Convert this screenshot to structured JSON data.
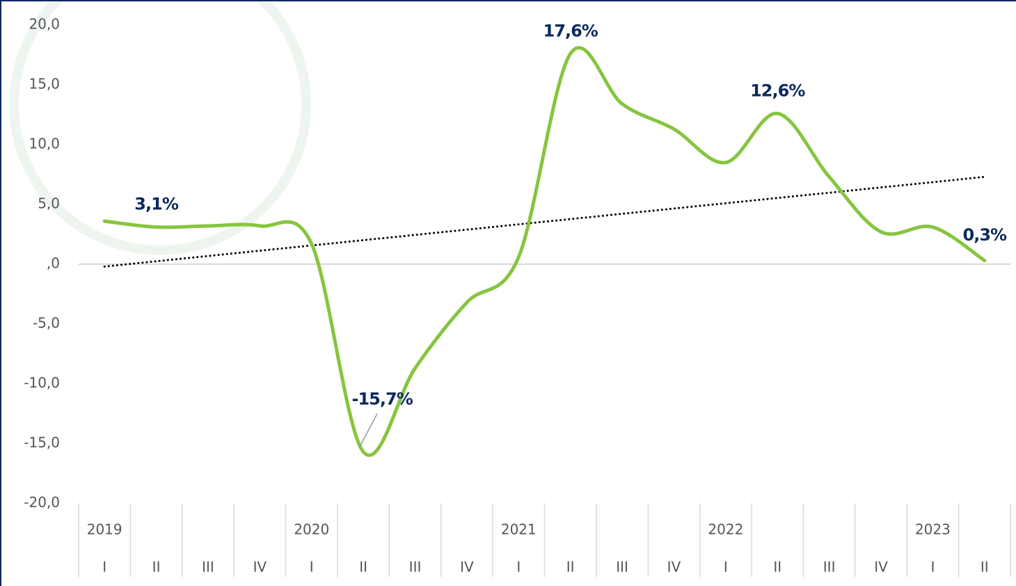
{
  "chart_data": {
    "type": "line",
    "categories": [
      "I",
      "II",
      "III",
      "IV",
      "I",
      "II",
      "III",
      "IV",
      "I",
      "II",
      "III",
      "IV",
      "I",
      "II",
      "III",
      "IV",
      "I",
      "II"
    ],
    "year_labels": [
      "2019",
      null,
      null,
      null,
      "2020",
      null,
      null,
      null,
      "2021",
      null,
      null,
      null,
      "2022",
      null,
      null,
      null,
      "2023",
      null
    ],
    "series": [
      {
        "color": "#86c540",
        "values": [
          3.6,
          3.1,
          3.2,
          3.2,
          1.7,
          -15.7,
          -8.7,
          -3.2,
          0.6,
          17.6,
          13.4,
          11.3,
          8.5,
          12.6,
          7.3,
          2.7,
          3.1,
          0.3
        ],
        "value_labels": [
          null,
          "3,1%",
          null,
          null,
          null,
          "-15,7%",
          null,
          null,
          null,
          "17,6%",
          null,
          null,
          null,
          "12,6%",
          null,
          null,
          null,
          "0,3%"
        ]
      }
    ],
    "trendline": {
      "color": "#000000",
      "values": [
        -0.2,
        7.3
      ]
    },
    "ylim": [
      -20,
      20
    ],
    "yticks": [
      {
        "value": 20,
        "label": "20,0"
      },
      {
        "value": 15,
        "label": "15,0"
      },
      {
        "value": 10,
        "label": "10,0"
      },
      {
        "value": 5,
        "label": "5,0"
      },
      {
        "value": 0,
        "label": ",0"
      },
      {
        "value": -5,
        "label": "-5,0"
      },
      {
        "value": -10,
        "label": "-10,0"
      },
      {
        "value": -15,
        "label": "-15,0"
      },
      {
        "value": -20,
        "label": "-20,0"
      }
    ]
  }
}
